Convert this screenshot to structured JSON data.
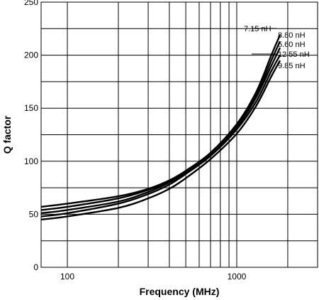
{
  "chart_data": {
    "type": "line",
    "xlabel": "Frequency (MHz)",
    "ylabel": "Q factor",
    "x_scale": "log",
    "xlim": [
      70,
      3000
    ],
    "ylim": [
      0,
      250
    ],
    "grid": true,
    "x_ticks": [
      {
        "value": 100,
        "label": "100"
      },
      {
        "value": 1000,
        "label": "1000"
      }
    ],
    "x_grid": [
      100,
      200,
      300,
      400,
      500,
      600,
      700,
      800,
      900,
      1000,
      2000
    ],
    "y_ticks": [
      {
        "value": 0,
        "label": "0"
      },
      {
        "value": 50,
        "label": "50"
      },
      {
        "value": 100,
        "label": "100"
      },
      {
        "value": 150,
        "label": "150"
      },
      {
        "value": 200,
        "label": "200"
      },
      {
        "value": 250,
        "label": "250"
      }
    ],
    "y_grid": [
      0,
      25,
      50,
      75,
      100,
      125,
      150,
      175,
      200,
      225,
      250
    ],
    "series": [
      {
        "name": "7.15 nH",
        "x": [
          70,
          100,
          200,
          300,
          400,
          500,
          700,
          1000,
          1300,
          1600,
          1800
        ],
        "y": [
          57,
          60,
          67,
          74,
          82,
          91,
          108,
          135,
          165,
          200,
          219
        ]
      },
      {
        "name": "8.80 nH",
        "x": [
          70,
          100,
          200,
          300,
          400,
          500,
          700,
          1000,
          1300,
          1600,
          1800
        ],
        "y": [
          54,
          57,
          65,
          73,
          81,
          90,
          107,
          133,
          162,
          195,
          213
        ]
      },
      {
        "name": "5.60 nH",
        "x": [
          70,
          100,
          200,
          300,
          400,
          500,
          700,
          1000,
          1300,
          1600,
          1800
        ],
        "y": [
          51,
          54,
          62,
          71,
          80,
          89,
          106,
          132,
          160,
          190,
          207
        ]
      },
      {
        "name": "12.55 nH",
        "x": [
          70,
          100,
          200,
          300,
          400,
          500,
          700,
          1000,
          1300,
          1600,
          1800
        ],
        "y": [
          48,
          51,
          60,
          69,
          78,
          88,
          105,
          130,
          156,
          185,
          200
        ]
      },
      {
        "name": "9.85 nH",
        "x": [
          70,
          100,
          200,
          300,
          400,
          500,
          700,
          1000,
          1300,
          1600,
          1800
        ],
        "y": [
          45,
          48,
          56,
          65,
          74,
          84,
          102,
          126,
          152,
          180,
          195
        ]
      }
    ]
  }
}
